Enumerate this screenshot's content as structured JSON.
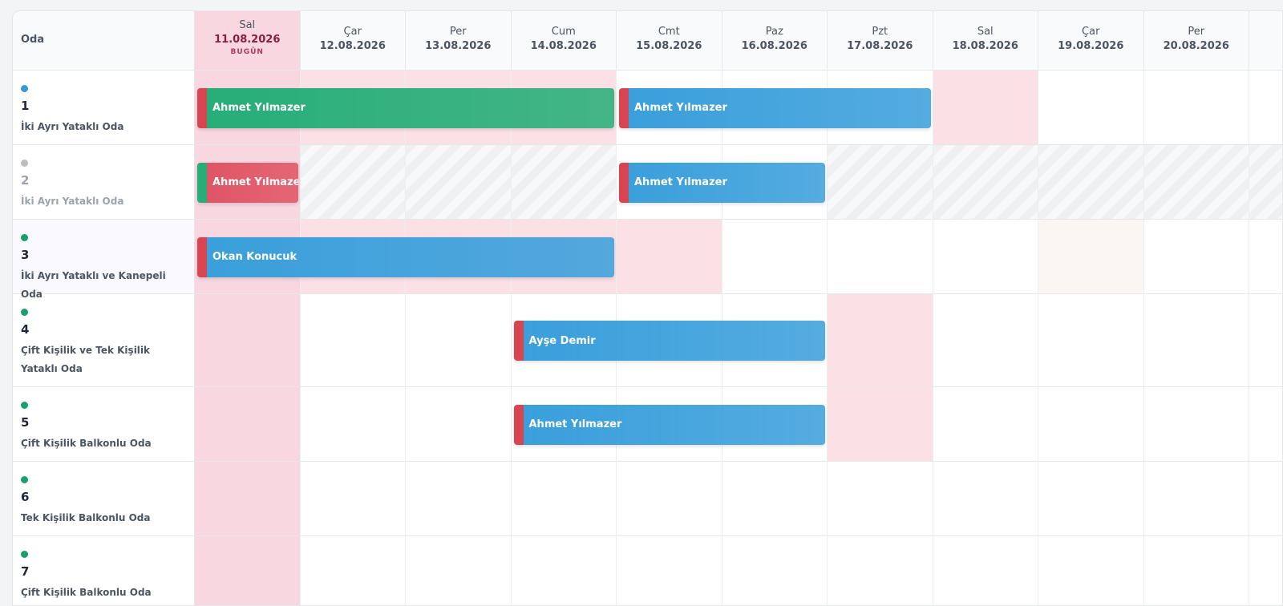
{
  "header": {
    "room_label": "Oda",
    "today_label": "BUGÜN",
    "days": [
      {
        "weekday": "Sal",
        "date": "11.08.2026"
      },
      {
        "weekday": "Çar",
        "date": "12.08.2026"
      },
      {
        "weekday": "Per",
        "date": "13.08.2026"
      },
      {
        "weekday": "Cum",
        "date": "14.08.2026"
      },
      {
        "weekday": "Cmt",
        "date": "15.08.2026"
      },
      {
        "weekday": "Paz",
        "date": "16.08.2026"
      },
      {
        "weekday": "Pzt",
        "date": "17.08.2026"
      },
      {
        "weekday": "Sal",
        "date": "18.08.2026"
      },
      {
        "weekday": "Çar",
        "date": "19.08.2026"
      },
      {
        "weekday": "Per",
        "date": "20.08.2026"
      }
    ]
  },
  "rooms": [
    {
      "number": "1",
      "name": "İki Ayrı Yataklı Oda",
      "color": "#3498db"
    },
    {
      "number": "2",
      "name": "İki Ayrı Yataklı Oda",
      "color": "#bdbdbd"
    },
    {
      "number": "3",
      "name": "İki Ayrı Yataklı ve Kanepeli Oda",
      "color": "#16a06a"
    },
    {
      "number": "4",
      "name": "Çift Kişilik ve Tek Kişilik Yataklı Oda",
      "color": "#16a06a"
    },
    {
      "number": "5",
      "name": "Çift Kişilik Balkonlu Oda",
      "color": "#16a06a"
    },
    {
      "number": "6",
      "name": "Tek Kişilik Balkonlu Oda",
      "color": "#16a06a"
    },
    {
      "number": "7",
      "name": "Çift Kişilik Balkonlu Oda",
      "color": "#16a06a"
    }
  ],
  "bookings": [
    {
      "guest": "Ahmet Yılmazer",
      "room": "1",
      "start": "11.08.2026",
      "nights": 4,
      "color": "#27ae78"
    },
    {
      "guest": "Ahmet Yılmazer",
      "room": "1",
      "start": "15.08.2026",
      "nights": 3,
      "color": "#3a9fdb"
    },
    {
      "guest": "Ahmet Yılmazer",
      "room": "2",
      "start": "11.08.2026",
      "nights": 1,
      "color": "#e05565"
    },
    {
      "guest": "Ahmet Yılmazer",
      "room": "2",
      "start": "15.08.2026",
      "nights": 2,
      "color": "#3a9fdb"
    },
    {
      "guest": "Okan Konucuk",
      "room": "3",
      "start": "11.08.2026",
      "nights": 4,
      "color": "#3a9fdb"
    },
    {
      "guest": "Ayşe Demir",
      "room": "4",
      "start": "14.08.2026",
      "nights": 3,
      "color": "#3a9fdb"
    },
    {
      "guest": "Ahmet Yılmazer",
      "room": "5",
      "start": "14.08.2026",
      "nights": 3,
      "color": "#3a9fdb"
    }
  ]
}
